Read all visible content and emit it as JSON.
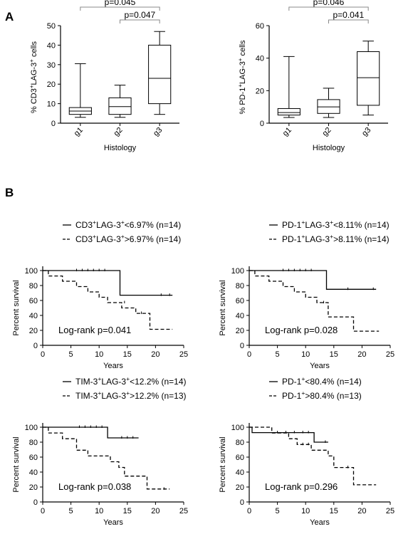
{
  "panel_a_label": "A",
  "panel_b_label": "B",
  "chart_data": [
    {
      "type": "box",
      "id": "a1",
      "ylabel": [
        "% CD3",
        "+",
        "LAG-3",
        "+",
        " cells"
      ],
      "xlabel": "Histology",
      "categories": [
        "g1",
        "g2",
        "g3"
      ],
      "ylim": [
        0,
        50
      ],
      "yticks": [
        0,
        10,
        20,
        30,
        40,
        50
      ],
      "boxes": [
        {
          "min": 3,
          "q1": 4.5,
          "median": 6.2,
          "q3": 8,
          "max": 30.5
        },
        {
          "min": 3,
          "q1": 4.5,
          "median": 8.5,
          "q3": 13,
          "max": 19.5
        },
        {
          "min": 4.5,
          "q1": 10,
          "median": 23,
          "q3": 40,
          "max": 47
        }
      ],
      "comparisons": [
        {
          "from": 0,
          "to": 2,
          "label": "p=0.045"
        },
        {
          "from": 1,
          "to": 2,
          "label": "p=0.047"
        }
      ]
    },
    {
      "type": "box",
      "id": "a2",
      "ylabel": [
        "% PD-1",
        "+",
        "LAG-3",
        "+",
        " cells"
      ],
      "xlabel": "Histology",
      "categories": [
        "g1",
        "g2",
        "g3"
      ],
      "ylim": [
        0,
        60
      ],
      "yticks": [
        0,
        20,
        40,
        60
      ],
      "boxes": [
        {
          "min": 3.5,
          "q1": 5,
          "median": 6.5,
          "q3": 9,
          "max": 41
        },
        {
          "min": 3.5,
          "q1": 6,
          "median": 10,
          "q3": 14.5,
          "max": 21.5
        },
        {
          "min": 5,
          "q1": 11,
          "median": 28,
          "q3": 44,
          "max": 50.5
        }
      ],
      "comparisons": [
        {
          "from": 0,
          "to": 2,
          "label": "p=0.046"
        },
        {
          "from": 1,
          "to": 2,
          "label": "p=0.041"
        }
      ]
    },
    {
      "type": "line",
      "id": "b1",
      "xlabel": "Years",
      "ylabel": "Percent survival",
      "xlim": [
        0,
        25
      ],
      "ylim": [
        0,
        100
      ],
      "xticks": [
        0,
        5,
        10,
        15,
        20,
        25
      ],
      "yticks": [
        0,
        20,
        40,
        60,
        80,
        100
      ],
      "annotation": "Log-rank p=0.041",
      "series": [
        {
          "name": [
            "CD3",
            "+",
            "LAG-3",
            "+",
            "<6.97% (n=14)"
          ],
          "dash": false,
          "x": [
            0,
            13.7,
            13.7,
            23
          ],
          "y": [
            100,
            100,
            67,
            67
          ],
          "censor": [
            [
              6,
              100
            ],
            [
              7,
              100
            ],
            [
              8,
              100
            ],
            [
              9,
              100
            ],
            [
              10,
              100
            ],
            [
              11,
              100
            ],
            [
              21,
              67
            ],
            [
              22.5,
              67
            ]
          ]
        },
        {
          "name": [
            "CD3",
            "+",
            "LAG-3",
            "+",
            ">6.97% (n=14)"
          ],
          "dash": true,
          "x": [
            0,
            1,
            1,
            3.5,
            3.5,
            6,
            6,
            8,
            8,
            10,
            10,
            11.5,
            11.5,
            14,
            14,
            16.5,
            16.5,
            19,
            19,
            23
          ],
          "y": [
            100,
            100,
            92.8,
            92.8,
            85.7,
            85.7,
            78.6,
            78.6,
            71.4,
            71.4,
            64.3,
            64.3,
            57.1,
            57.1,
            50,
            50,
            42.8,
            42.8,
            21.4,
            21.4
          ],
          "censor": [
            [
              14.5,
              57.1
            ],
            [
              17.5,
              42.8
            ]
          ]
        }
      ]
    },
    {
      "type": "line",
      "id": "b2",
      "xlabel": "Years",
      "ylabel": "Percent survival",
      "xlim": [
        0,
        25
      ],
      "ylim": [
        0,
        100
      ],
      "xticks": [
        0,
        5,
        10,
        15,
        20,
        25
      ],
      "yticks": [
        0,
        20,
        40,
        60,
        80,
        100
      ],
      "annotation": "Log-rank p=0.028",
      "series": [
        {
          "name": [
            "PD-1",
            "+",
            "LAG-3",
            "+",
            "<8.11% (n=14)"
          ],
          "dash": false,
          "x": [
            0,
            13.7,
            13.7,
            22.5
          ],
          "y": [
            100,
            100,
            75,
            75
          ],
          "censor": [
            [
              6,
              100
            ],
            [
              7,
              100
            ],
            [
              8,
              100
            ],
            [
              9,
              100
            ],
            [
              10,
              100
            ],
            [
              11,
              100
            ],
            [
              17.5,
              75
            ],
            [
              22,
              75
            ]
          ]
        },
        {
          "name": [
            "PD-1",
            "+",
            "LAG-3",
            "+",
            ">8.11% (n=14)"
          ],
          "dash": true,
          "x": [
            0,
            1,
            1,
            3.5,
            3.5,
            6,
            6,
            8,
            8,
            10,
            10,
            12,
            12,
            14,
            14,
            18.5,
            18.5,
            23
          ],
          "y": [
            100,
            100,
            92.8,
            92.8,
            85.7,
            85.7,
            78.6,
            78.6,
            71.4,
            71.4,
            64.3,
            64.3,
            57.1,
            57.1,
            38,
            38,
            19,
            19
          ],
          "censor": [
            [
              13.2,
              57.1
            ]
          ]
        }
      ]
    },
    {
      "type": "line",
      "id": "b3",
      "xlabel": "Years",
      "ylabel": "Percent survival",
      "xlim": [
        0,
        25
      ],
      "ylim": [
        0,
        100
      ],
      "xticks": [
        0,
        5,
        10,
        15,
        20,
        25
      ],
      "yticks": [
        0,
        20,
        40,
        60,
        80,
        100
      ],
      "annotation": "Log-rank p=0.038",
      "series": [
        {
          "name": [
            "TIM-3",
            "+",
            "LAG-3",
            "+",
            "<12.2% (n=14)"
          ],
          "dash": false,
          "x": [
            0,
            11.5,
            11.5,
            17
          ],
          "y": [
            100,
            100,
            85.7,
            85.7
          ],
          "censor": [
            [
              6.5,
              100
            ],
            [
              7.5,
              100
            ],
            [
              8.5,
              100
            ],
            [
              9.5,
              100
            ],
            [
              10.5,
              100
            ],
            [
              14,
              85.7
            ],
            [
              15,
              85.7
            ],
            [
              16,
              85.7
            ]
          ]
        },
        {
          "name": [
            "TIM-3",
            "+",
            "LAG-3",
            "+",
            ">12.2% (n=13)"
          ],
          "dash": true,
          "x": [
            0,
            1,
            1,
            3.5,
            3.5,
            6,
            6,
            8,
            8,
            12,
            12,
            13.5,
            13.5,
            14.5,
            14.5,
            18.5,
            18.5,
            22.5
          ],
          "y": [
            100,
            100,
            92.3,
            92.3,
            84.6,
            84.6,
            69.2,
            69.2,
            61.5,
            61.5,
            53.8,
            53.8,
            46.2,
            46.2,
            34.6,
            34.6,
            17.3,
            17.3
          ],
          "censor": [
            [
              21.5,
              17.3
            ]
          ]
        }
      ]
    },
    {
      "type": "line",
      "id": "b4",
      "xlabel": "Years",
      "ylabel": "Percent survival",
      "xlim": [
        0,
        25
      ],
      "ylim": [
        0,
        100
      ],
      "xticks": [
        0,
        5,
        10,
        15,
        20,
        25
      ],
      "yticks": [
        0,
        20,
        40,
        60,
        80,
        100
      ],
      "annotation": "Log-rank p=0.296",
      "series": [
        {
          "name": [
            "PD-1",
            "+",
            "<80.4% (n=14)"
          ],
          "dash": false,
          "x": [
            0,
            0.5,
            0.5,
            11.5,
            11.5,
            14
          ],
          "y": [
            100,
            100,
            92.8,
            92.8,
            80,
            80
          ],
          "censor": [
            [
              5,
              92.8
            ],
            [
              6.5,
              92.8
            ],
            [
              8,
              92.8
            ],
            [
              9.5,
              92.8
            ],
            [
              10.5,
              92.8
            ],
            [
              13.5,
              80
            ]
          ]
        },
        {
          "name": [
            "PD-1",
            "+",
            ">80.4% (n=13)"
          ],
          "dash": true,
          "x": [
            0,
            4,
            4,
            7,
            7,
            8.5,
            8.5,
            11,
            11,
            14,
            14,
            15,
            15,
            18.5,
            18.5,
            22.5
          ],
          "y": [
            100,
            100,
            92.3,
            92.3,
            84.6,
            84.6,
            76.9,
            76.9,
            69.2,
            69.2,
            61.5,
            61.5,
            46.1,
            46.1,
            23,
            23
          ],
          "censor": [
            [
              9.5,
              76.9
            ],
            [
              10.5,
              76.9
            ],
            [
              17.5,
              46.1
            ]
          ]
        }
      ]
    }
  ]
}
